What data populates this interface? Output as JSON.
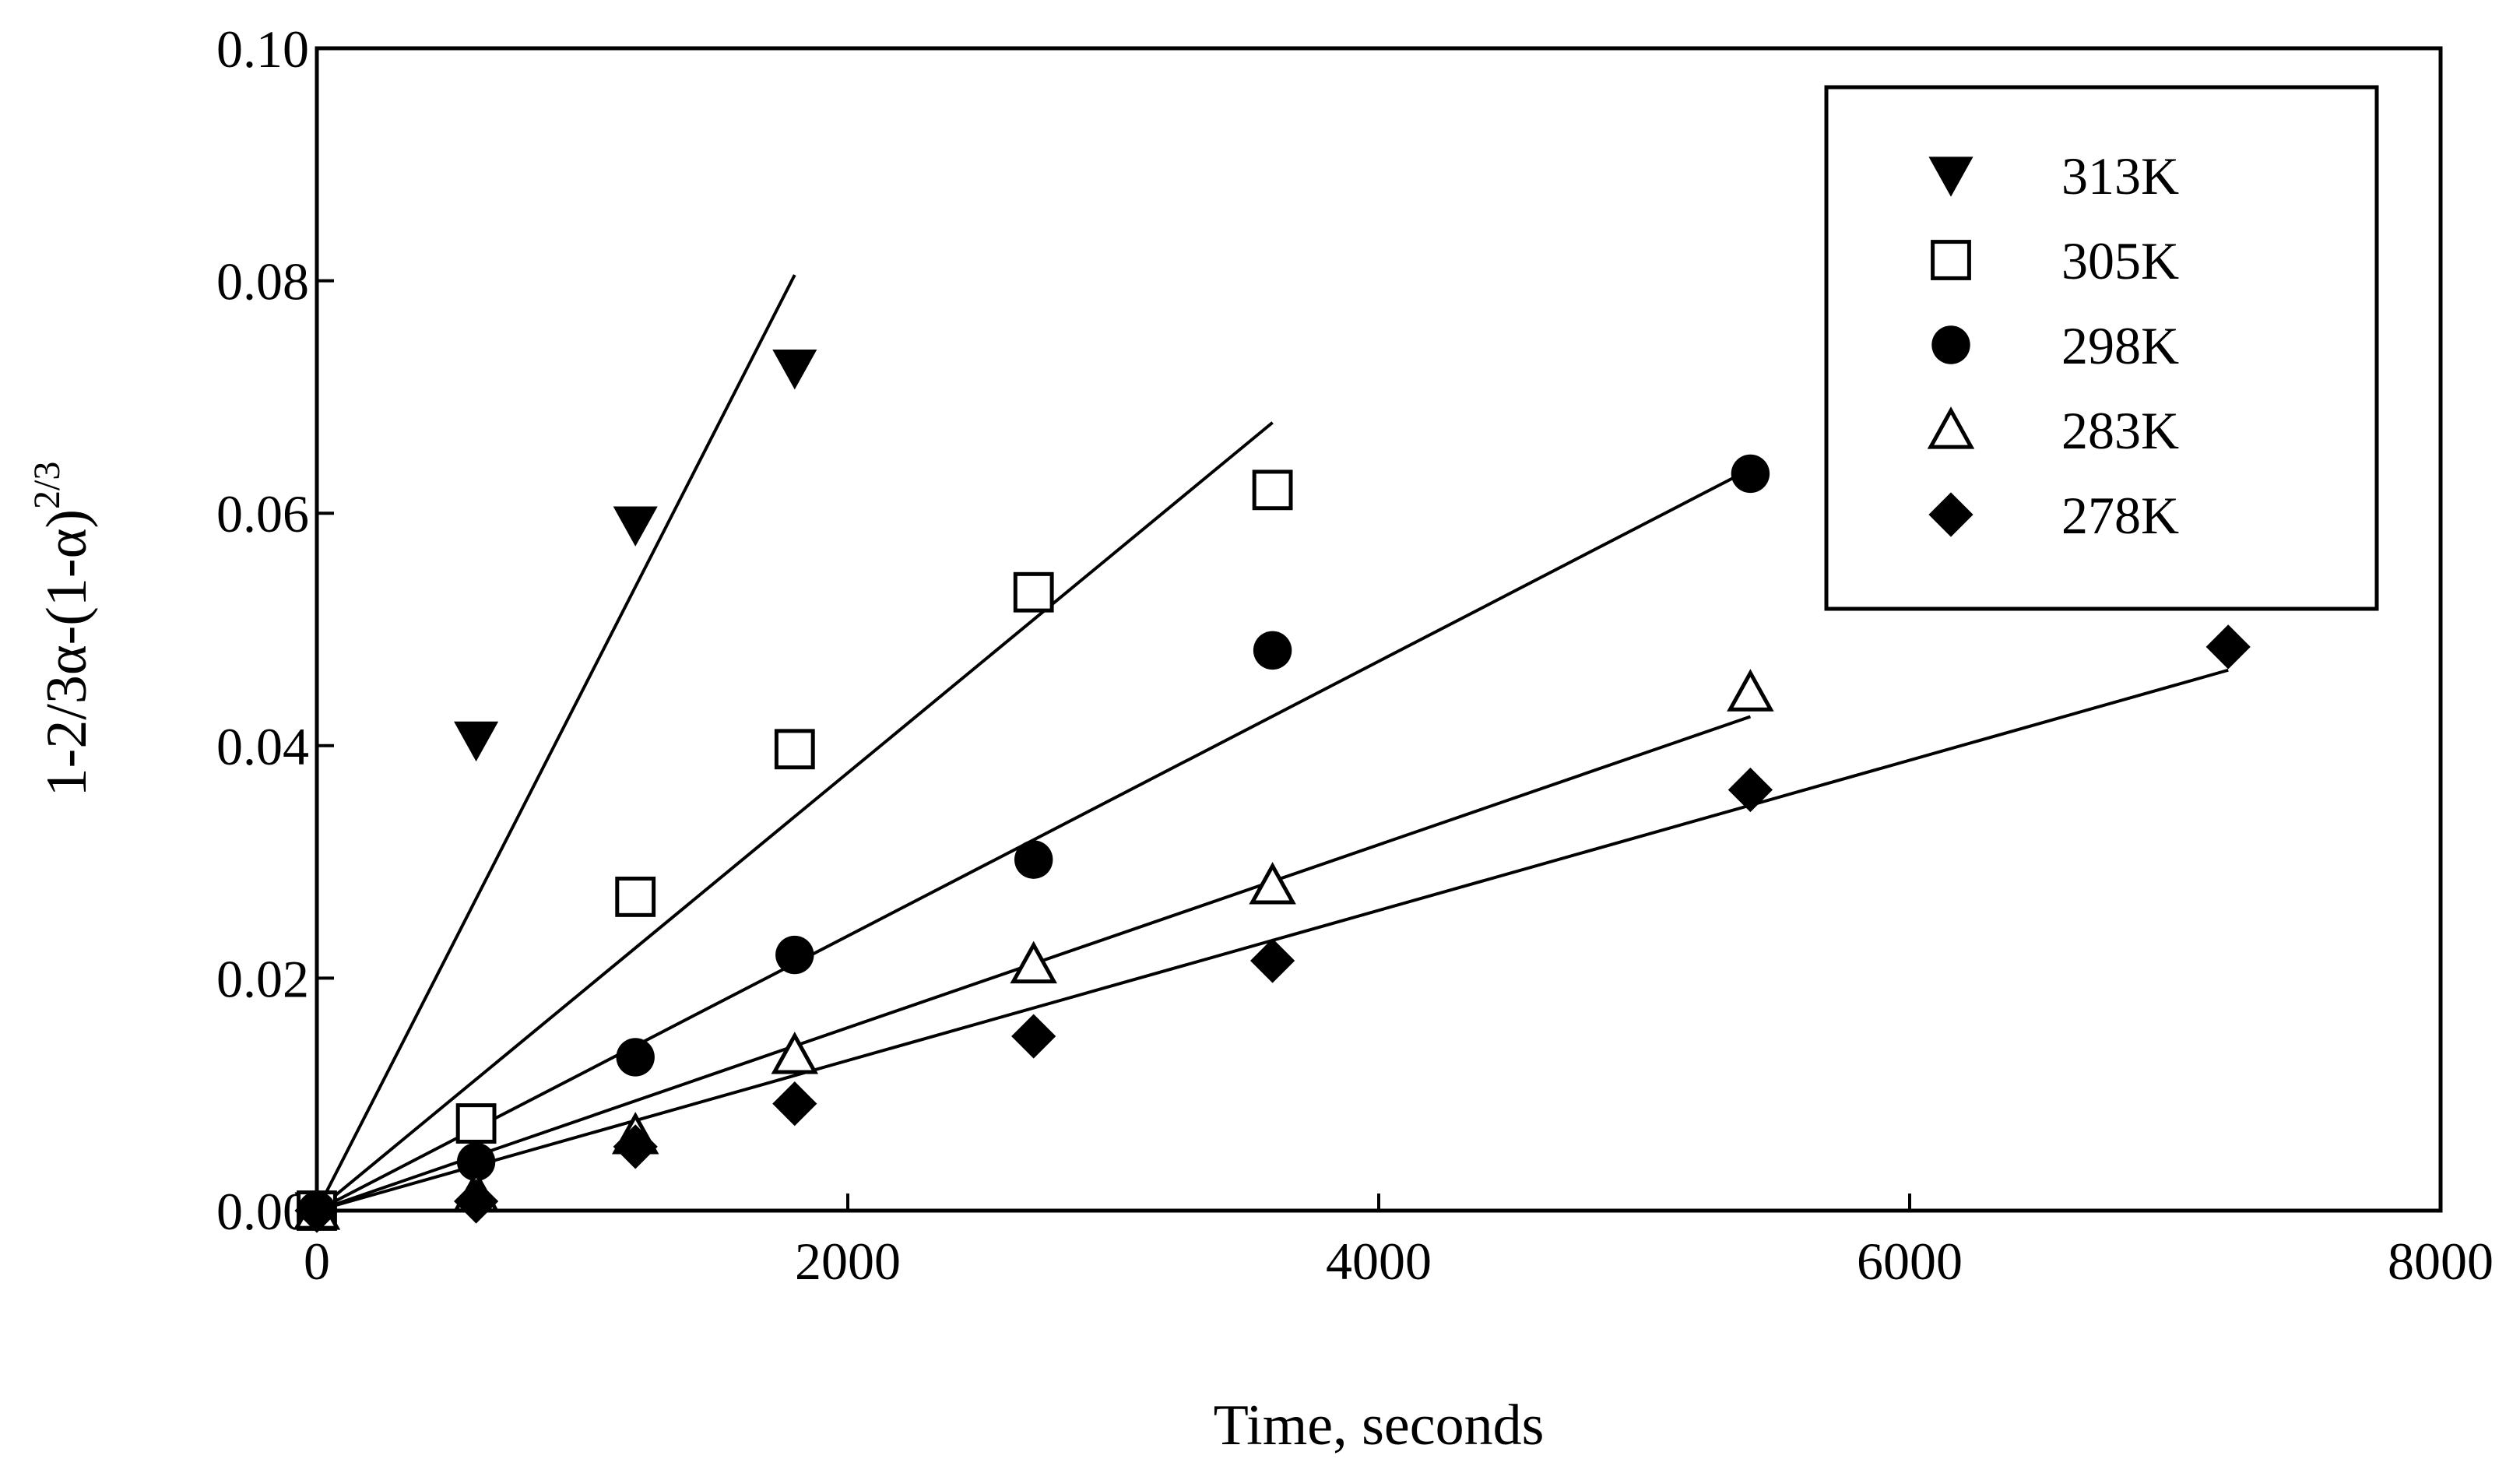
{
  "chart_data": {
    "type": "scatter",
    "title": "",
    "xlabel": "Time, seconds",
    "ylabel": {
      "main": "1-2/3α-(1-α)",
      "superscript": "2/3"
    },
    "xlim": [
      0,
      8000
    ],
    "ylim": [
      0,
      0.1
    ],
    "xticks": [
      0,
      2000,
      4000,
      6000,
      8000
    ],
    "xtick_labels": [
      "0",
      "2000",
      "4000",
      "6000",
      "8000"
    ],
    "yticks": [
      0,
      0.02,
      0.04,
      0.06,
      0.08,
      0.1
    ],
    "ytick_labels": [
      "0.00",
      "0.02",
      "0.04",
      "0.06",
      "0.08",
      "0.10"
    ],
    "grid": false,
    "legend_position": "top-right",
    "series": [
      {
        "name": "313K",
        "marker": "triangle-down-filled",
        "x": [
          0,
          600,
          1200,
          1800
        ],
        "y": [
          0,
          0.0405,
          0.059,
          0.0725
        ],
        "fit": {
          "x": [
            0,
            1800
          ],
          "y": [
            0,
            0.0805
          ]
        }
      },
      {
        "name": "305K",
        "marker": "square-open",
        "x": [
          0,
          600,
          1200,
          1800,
          2700,
          3600
        ],
        "y": [
          0,
          0.0075,
          0.027,
          0.0397,
          0.0532,
          0.062
        ],
        "fit": {
          "x": [
            0,
            3600
          ],
          "y": [
            0,
            0.0678
          ]
        }
      },
      {
        "name": "298K",
        "marker": "circle-filled",
        "x": [
          0,
          600,
          1200,
          1800,
          2700,
          3600,
          5400
        ],
        "y": [
          0,
          0.0042,
          0.0132,
          0.022,
          0.0302,
          0.0482,
          0.0634
        ],
        "fit": {
          "x": [
            0,
            5400
          ],
          "y": [
            0,
            0.0638
          ]
        }
      },
      {
        "name": "283K",
        "marker": "triangle-up-open",
        "x": [
          0,
          600,
          1200,
          1800,
          2700,
          3600,
          5400
        ],
        "y": [
          0,
          0.0015,
          0.0065,
          0.0134,
          0.0212,
          0.028,
          0.0446
        ],
        "fit": {
          "x": [
            0,
            5400
          ],
          "y": [
            0,
            0.0425
          ]
        }
      },
      {
        "name": "278K",
        "marker": "diamond-filled",
        "x": [
          0,
          600,
          1200,
          1800,
          2700,
          3600,
          5400,
          7200
        ],
        "y": [
          0,
          0.0008,
          0.0055,
          0.0092,
          0.015,
          0.0215,
          0.0362,
          0.0485
        ],
        "fit": {
          "x": [
            0,
            7200
          ],
          "y": [
            0,
            0.0465
          ]
        }
      }
    ]
  }
}
